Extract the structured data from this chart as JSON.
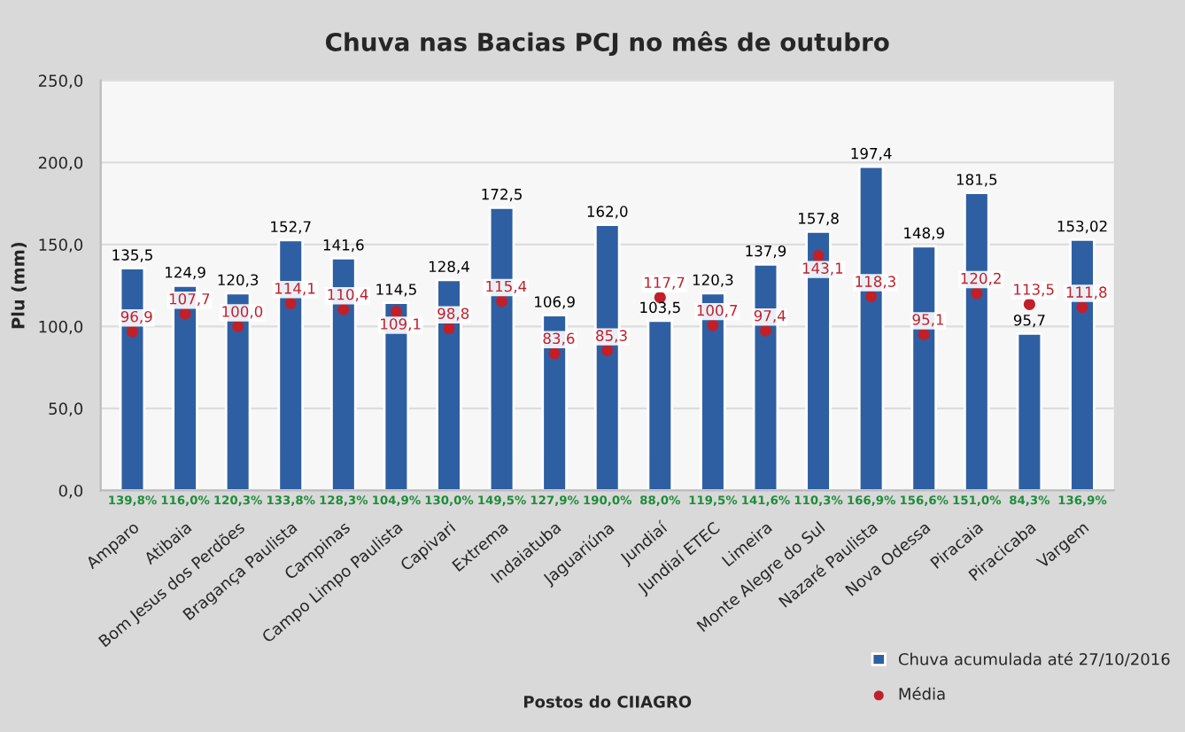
{
  "chart_data": {
    "type": "bar",
    "title": "Chuva nas Bacias PCJ no mês de outubro",
    "xlabel": "Postos do CIIAGRO",
    "ylabel": "Plu (mm)",
    "categories": [
      "Amparo",
      "Atibaia",
      "Bom Jesus dos Perdões",
      "Bragança Paulista",
      "Campinas",
      "Campo Limpo Paulista",
      "Capivari",
      "Extrema",
      "Indaiatuba",
      "Jaguariúna",
      "Jundiaí",
      "Jundiaí ETEC",
      "Limeira",
      "Monte Alegre do Sul",
      "Nazaré Paulista",
      "Nova Odessa",
      "Piracaia",
      "Piracicaba",
      "Vargem"
    ],
    "series": [
      {
        "name": "Chuva acumulada até 27/10/2016",
        "color": "#2e5fa3",
        "values": [
          135.5,
          124.9,
          120.3,
          152.7,
          141.6,
          114.5,
          128.4,
          172.5,
          106.9,
          162.0,
          103.5,
          120.3,
          137.9,
          157.8,
          197.4,
          148.9,
          181.5,
          95.7,
          153.02
        ],
        "value_labels": [
          "135,5",
          "124,9",
          "120,3",
          "152,7",
          "141,6",
          "114,5",
          "128,4",
          "172,5",
          "106,9",
          "162,0",
          "103,5",
          "120,3",
          "137,9",
          "157,8",
          "197,4",
          "148,9",
          "181,5",
          "95,7",
          "153,02"
        ]
      },
      {
        "name": "Média",
        "type": "scatter",
        "color": "#c0202a",
        "values": [
          96.9,
          107.7,
          100.0,
          114.1,
          110.4,
          109.1,
          98.8,
          115.4,
          83.6,
          85.3,
          117.7,
          100.7,
          97.4,
          143.1,
          118.3,
          95.1,
          120.2,
          113.5,
          111.8
        ],
        "value_labels": [
          "96,9",
          "107,7",
          "100,0",
          "114,1",
          "110,4",
          "109,1",
          "98,8",
          "115,4",
          "83,6",
          "85,3",
          "117,7",
          "100,7",
          "97,4",
          "143,1",
          "118,3",
          "95,1",
          "120,2",
          "113,5",
          "111,8"
        ]
      }
    ],
    "annotations": [
      {
        "text": "139,8%",
        "x": "Amparo",
        "y": 0
      },
      {
        "text": "116,0%",
        "x": "Atibaia",
        "y": 0
      },
      {
        "text": "120,3%",
        "x": "Bom Jesus dos Perdões",
        "y": 0
      },
      {
        "text": "133,8%",
        "x": "Bragança Paulista",
        "y": 0
      },
      {
        "text": "128,3%",
        "x": "Campinas",
        "y": 0
      },
      {
        "text": "104,9%",
        "x": "Campo Limpo Paulista",
        "y": 0
      },
      {
        "text": "130,0%",
        "x": "Capivari",
        "y": 0
      },
      {
        "text": "149,5%",
        "x": "Extrema",
        "y": 0
      },
      {
        "text": "127,9%",
        "x": "Indaiatuba",
        "y": 0
      },
      {
        "text": "190,0%",
        "x": "Jaguariúna",
        "y": 0
      },
      {
        "text": "88,0%",
        "x": "Jundiaí",
        "y": 0
      },
      {
        "text": "119,5%",
        "x": "Jundiaí ETEC",
        "y": 0
      },
      {
        "text": "141,6%",
        "x": "Limeira",
        "y": 0
      },
      {
        "text": "110,3%",
        "x": "Monte Alegre do Sul",
        "y": 0
      },
      {
        "text": "166,9%",
        "x": "Nazaré Paulista",
        "y": 0
      },
      {
        "text": "156,6%",
        "x": "Nova Odessa",
        "y": 0
      },
      {
        "text": "151,0%",
        "x": "Piracaia",
        "y": 0
      },
      {
        "text": "84,3%",
        "x": "Piracicaba",
        "y": 0
      },
      {
        "text": "136,9%",
        "x": "Vargem",
        "y": 0
      }
    ],
    "ylim": [
      0,
      250
    ],
    "yticks": [
      {
        "value": 0,
        "label": "0,0"
      },
      {
        "value": 50,
        "label": "50,0"
      },
      {
        "value": 100,
        "label": "100,0"
      },
      {
        "value": 150,
        "label": "150,0"
      },
      {
        "value": 200,
        "label": "200,0"
      },
      {
        "value": 250,
        "label": "250,0"
      }
    ],
    "grid": "y",
    "legend": "bottom right",
    "marker": "circle"
  }
}
